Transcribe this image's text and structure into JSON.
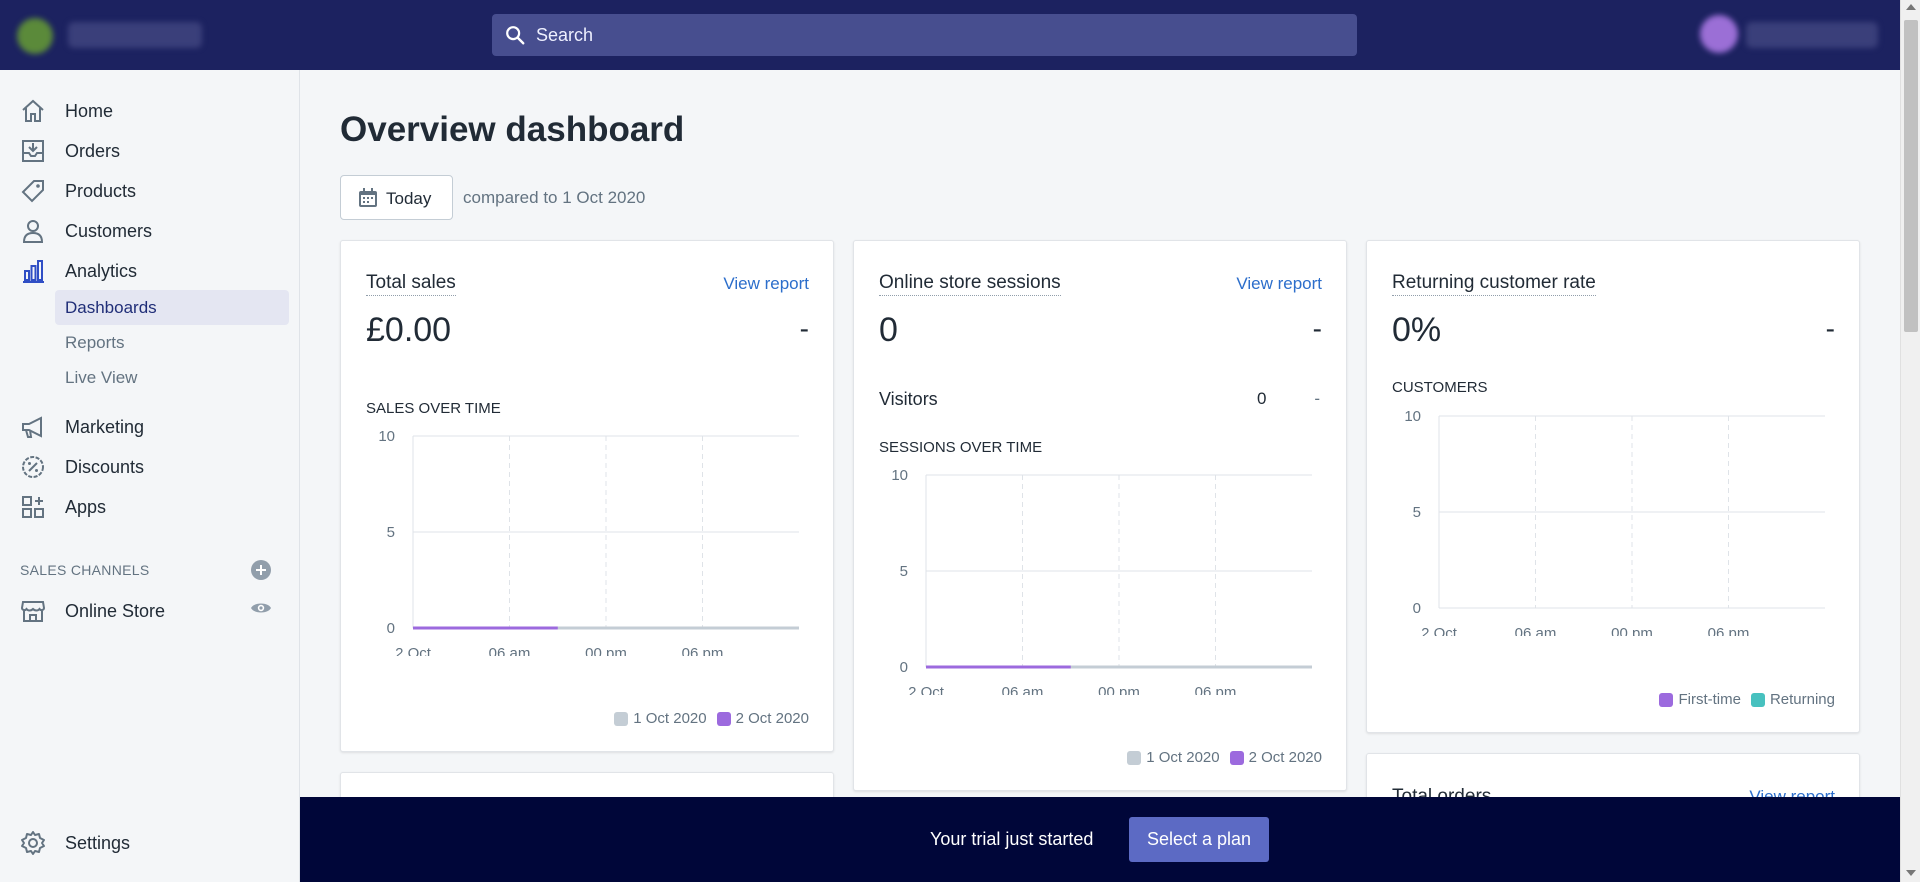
{
  "search": {
    "placeholder": "Search"
  },
  "sidebar": {
    "items": [
      {
        "label": "Home",
        "icon": "home-icon"
      },
      {
        "label": "Orders",
        "icon": "orders-icon"
      },
      {
        "label": "Products",
        "icon": "tag-icon"
      },
      {
        "label": "Customers",
        "icon": "person-icon"
      },
      {
        "label": "Analytics",
        "icon": "bar-chart-icon"
      }
    ],
    "analytics_sub": [
      {
        "label": "Dashboards",
        "active": true
      },
      {
        "label": "Reports"
      },
      {
        "label": "Live View"
      }
    ],
    "items2": [
      {
        "label": "Marketing",
        "icon": "megaphone-icon"
      },
      {
        "label": "Discounts",
        "icon": "discount-icon"
      },
      {
        "label": "Apps",
        "icon": "apps-icon"
      }
    ],
    "sales_channels_heading": "SALES CHANNELS",
    "online_store": "Online Store",
    "settings": "Settings"
  },
  "main": {
    "title": "Overview dashboard",
    "date_button": "Today",
    "compare_text": "compared to 1 Oct 2020"
  },
  "cards": {
    "total_sales": {
      "title": "Total sales",
      "link": "View report",
      "value": "£0.00",
      "change": "-",
      "chart_heading": "SALES OVER TIME"
    },
    "sessions": {
      "title": "Online store sessions",
      "link": "View report",
      "value": "0",
      "change": "-",
      "visitors_label": "Visitors",
      "visitors_value": "0",
      "visitors_change": "-",
      "chart_heading": "SESSIONS OVER TIME"
    },
    "returning": {
      "title": "Returning customer rate",
      "value": "0%",
      "change": "-",
      "chart_heading": "CUSTOMERS"
    },
    "total_orders": {
      "title": "Total orders",
      "link": "View report"
    }
  },
  "legends": {
    "previous": "1 Oct 2020",
    "current": "2 Oct 2020",
    "first_time": "First-time",
    "returning": "Returning"
  },
  "colors": {
    "previous": "#c4cdd5",
    "current": "#9c6ade",
    "returning": "#47c1bf",
    "topbar": "#1c2260",
    "banner": "#000639",
    "accent": "#5c6ac4"
  },
  "banner": {
    "text": "Your trial just started",
    "button": "Select a plan"
  },
  "chart_data": [
    {
      "type": "line",
      "title": "SALES OVER TIME",
      "categories": [
        "2 Oct",
        "06 am",
        "00 pm",
        "06 pm"
      ],
      "ylim": [
        0,
        10
      ],
      "yticks": [
        0,
        5,
        10
      ],
      "series": [
        {
          "name": "1 Oct 2020",
          "x": [
            0,
            4
          ],
          "values": [
            0,
            0
          ]
        },
        {
          "name": "2 Oct 2020",
          "x": [
            0,
            1.5
          ],
          "values": [
            0,
            0
          ]
        }
      ]
    },
    {
      "type": "line",
      "title": "SESSIONS OVER TIME",
      "categories": [
        "2 Oct",
        "06 am",
        "00 pm",
        "06 pm"
      ],
      "ylim": [
        0,
        10
      ],
      "yticks": [
        0,
        5,
        10
      ],
      "series": [
        {
          "name": "1 Oct 2020",
          "x": [
            0,
            4
          ],
          "values": [
            0,
            0
          ]
        },
        {
          "name": "2 Oct 2020",
          "x": [
            0,
            1.5
          ],
          "values": [
            0,
            0
          ]
        }
      ]
    },
    {
      "type": "line",
      "title": "CUSTOMERS",
      "categories": [
        "2 Oct",
        "06 am",
        "00 pm",
        "06 pm"
      ],
      "ylim": [
        0,
        10
      ],
      "yticks": [
        0,
        5,
        10
      ],
      "series": [
        {
          "name": "First-time",
          "x": [],
          "values": []
        },
        {
          "name": "Returning",
          "x": [],
          "values": []
        }
      ]
    }
  ]
}
